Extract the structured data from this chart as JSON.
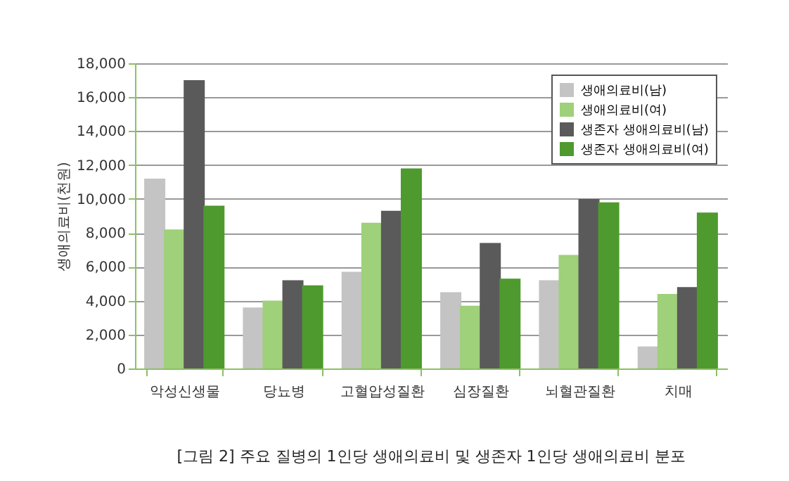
{
  "chart_data": {
    "type": "bar",
    "title": "[그림 2] 주요 질병의 1인당 생애의료비 및 생존자 1인당 생애의료비 분포",
    "ylabel": "생애의료비(천원)",
    "categories": [
      "악성신생물",
      "당뇨병",
      "고혈압성질환",
      "심장질환",
      "뇌혈관질환",
      "치매"
    ],
    "series": [
      {
        "name": "생애의료비(남)",
        "color": "#c4c4c4",
        "values": [
          11200,
          3600,
          5700,
          4500,
          5200,
          1300
        ]
      },
      {
        "name": "생애의료비(여)",
        "color": "#9fd07a",
        "values": [
          8200,
          4000,
          8600,
          3700,
          6700,
          4400
        ]
      },
      {
        "name": "생존자 생애의료비(남)",
        "color": "#5a5a5a",
        "values": [
          17000,
          5200,
          9300,
          7400,
          10000,
          4800
        ]
      },
      {
        "name": "생존자 생애의료비(여)",
        "color": "#4e9a2e",
        "values": [
          9600,
          4900,
          11800,
          5300,
          9800,
          9200
        ]
      }
    ],
    "ylim": [
      0,
      18000
    ],
    "yticks": [
      0,
      {
        "value": 2000,
        "label": "2,000"
      },
      {
        "value": 4000,
        "label": "4,000"
      },
      {
        "value": 6000,
        "label": "6,000"
      },
      {
        "value": 8000,
        "label": "8,000"
      },
      {
        "value": 10000,
        "label": "10,000"
      },
      {
        "value": 12000,
        "label": "12,000"
      },
      {
        "value": 14000,
        "label": "14,000"
      },
      {
        "value": 16000,
        "label": "16,000"
      },
      {
        "value": 18000,
        "label": "18,000"
      }
    ],
    "grid": "y",
    "legend": "top right"
  }
}
